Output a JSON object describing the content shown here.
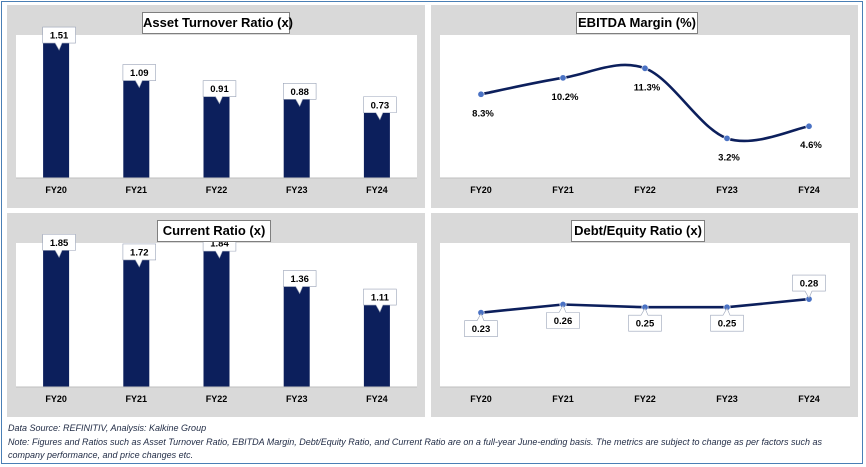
{
  "charts": {
    "asset_turnover": {
      "title": "Asset Turnover Ratio (x)",
      "chart_data": {
        "type": "bar",
        "categories": [
          "FY20",
          "FY21",
          "FY22",
          "FY23",
          "FY24"
        ],
        "values": [
          1.51,
          1.09,
          0.91,
          0.88,
          0.73
        ],
        "labels": [
          "1.51",
          "1.09",
          "0.91",
          "0.88",
          "0.73"
        ],
        "title": "Asset Turnover Ratio (x)",
        "ylim": [
          0,
          1.6
        ],
        "color": "#0c1f5c"
      }
    },
    "ebitda_margin": {
      "title": "EBITDA Margin (%)",
      "chart_data": {
        "type": "line",
        "categories": [
          "FY20",
          "FY21",
          "FY22",
          "FY23",
          "FY24"
        ],
        "values": [
          8.3,
          10.2,
          11.3,
          3.2,
          4.6
        ],
        "labels": [
          "8.3%",
          "10.2%",
          "11.3%",
          "3.2%",
          "4.6%"
        ],
        "title": "EBITDA Margin (%)",
        "ylim": [
          0,
          14
        ],
        "color": "#0c1f5c"
      }
    },
    "current_ratio": {
      "title": "Current Ratio (x)",
      "chart_data": {
        "type": "bar",
        "categories": [
          "FY20",
          "FY21",
          "FY22",
          "FY23",
          "FY24"
        ],
        "values": [
          1.85,
          1.72,
          1.84,
          1.36,
          1.11
        ],
        "labels": [
          "1.85",
          "1.72",
          "1.84",
          "1.36",
          "1.11"
        ],
        "title": "Current Ratio (x)",
        "ylim": [
          0,
          1.95
        ],
        "color": "#0c1f5c"
      }
    },
    "debt_equity": {
      "title": "Debt/Equity Ratio (x)",
      "chart_data": {
        "type": "line",
        "categories": [
          "FY20",
          "FY21",
          "FY22",
          "FY23",
          "FY24"
        ],
        "values": [
          0.23,
          0.26,
          0.25,
          0.25,
          0.28
        ],
        "labels": [
          "0.23",
          "0.26",
          "0.25",
          "0.25",
          "0.28"
        ],
        "title": "Debt/Equity Ratio (x)",
        "ylim": [
          0,
          0.45
        ],
        "color": "#0c1f5c"
      }
    }
  },
  "footer": {
    "source": "Data Source: REFINITIV, Analysis: Kalkine Group",
    "note_line1": "Note: Figures and Ratios such as Asset Turnover Ratio, EBITDA Margin, Debt/Equity Ratio, and Current Ratio  are on a full-year June-ending basis. The metrics are subject to change as per factors such as",
    "note_line2": "company performance, and price changes etc."
  }
}
